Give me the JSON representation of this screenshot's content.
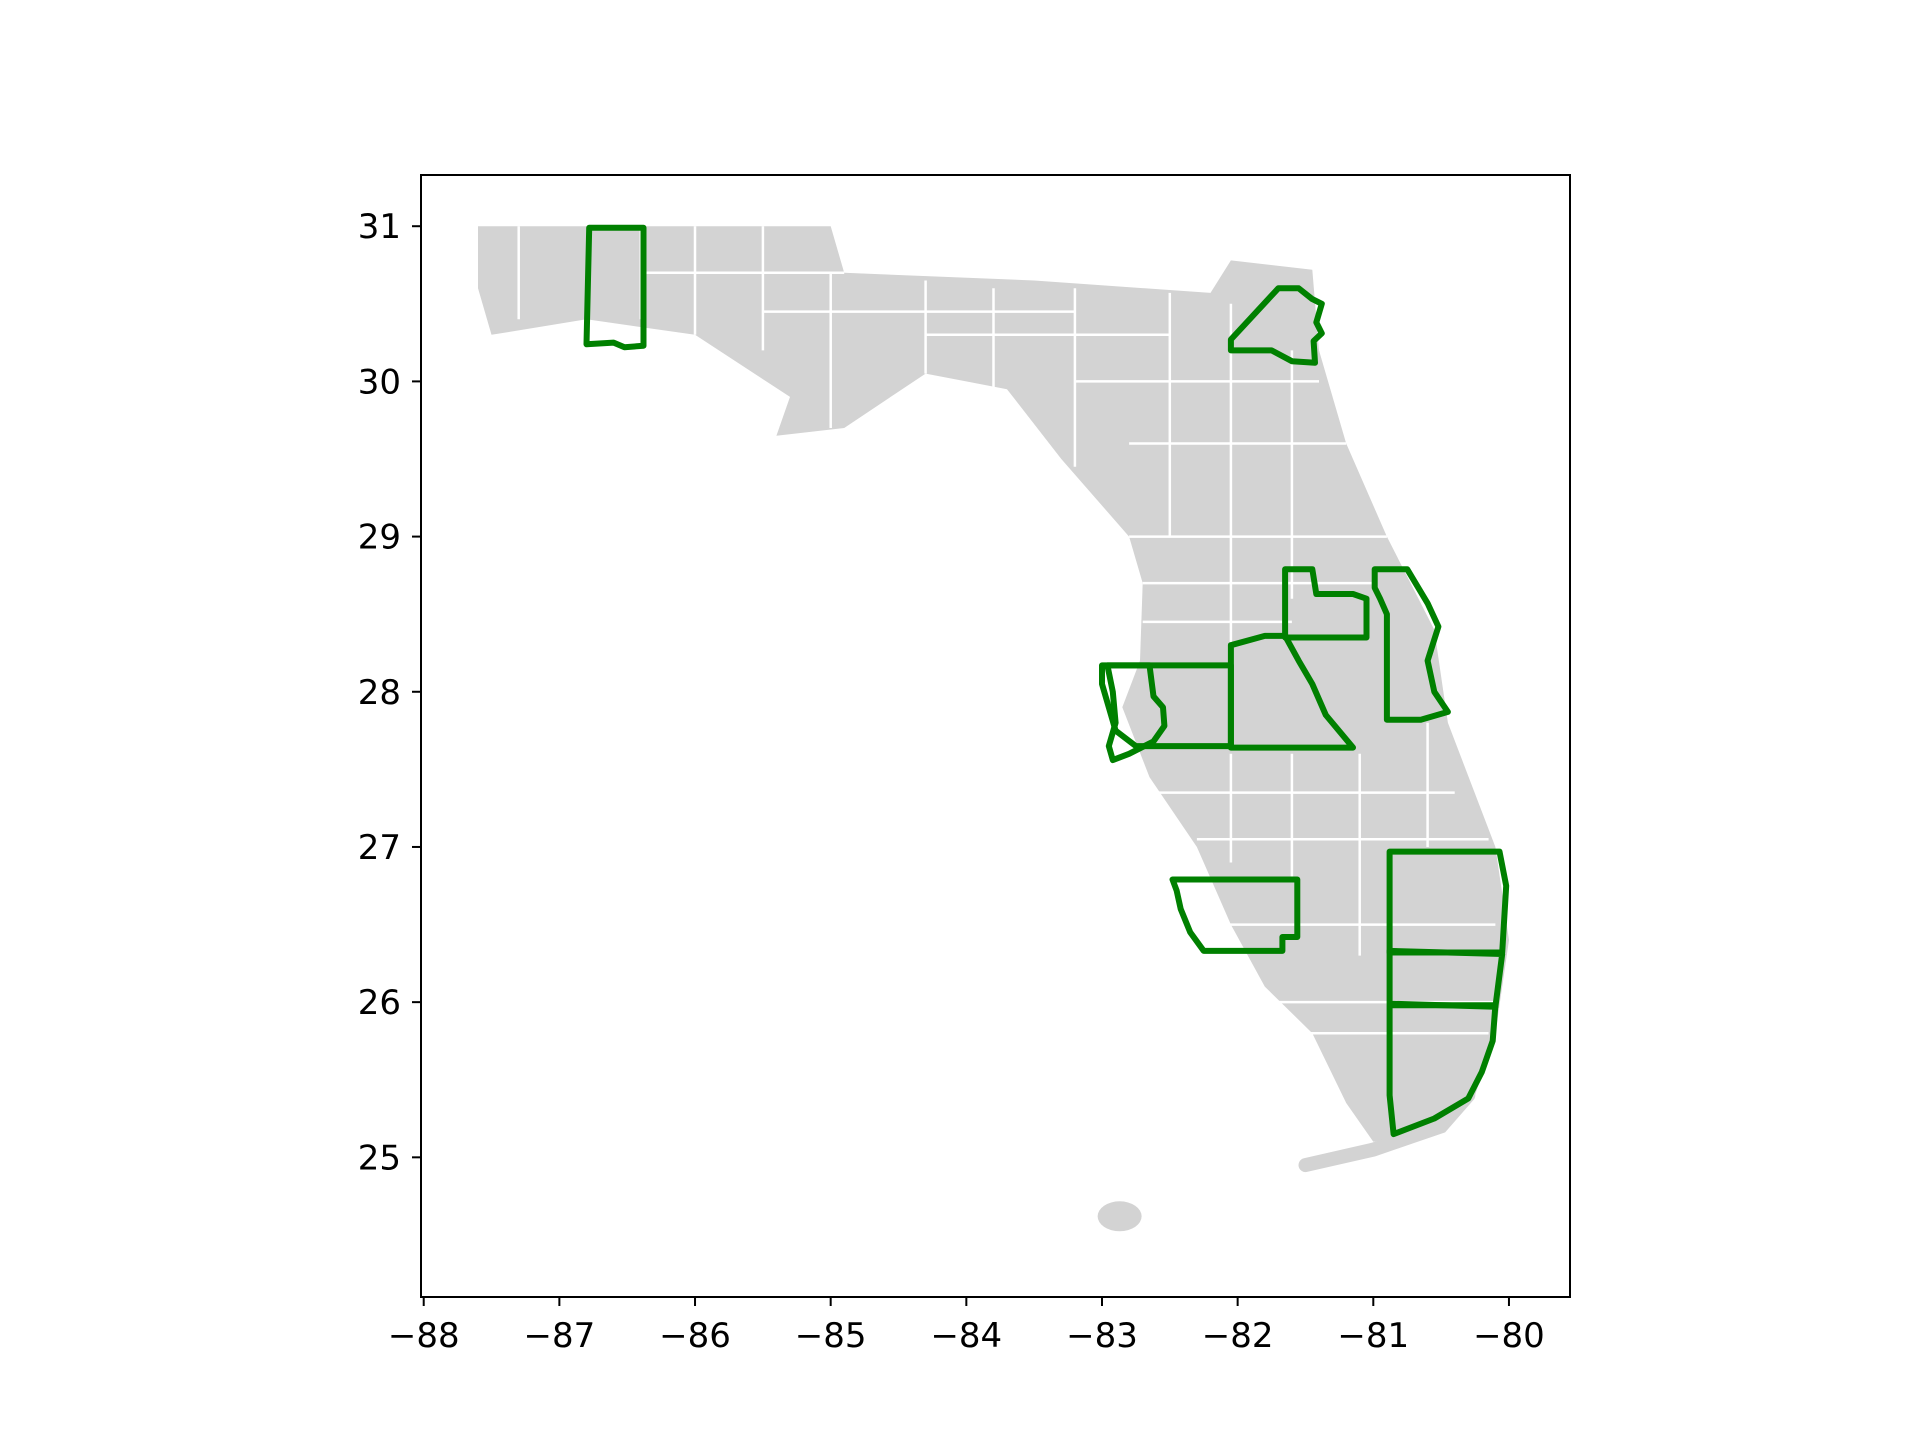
{
  "map": {
    "land_color": "#d3d3d3",
    "county_line_color": "#ffffff",
    "highlight_color": "#008000",
    "frame_color": "#000000",
    "x_range": [
      -88.02,
      -79.55
    ],
    "y_range": [
      24.1,
      31.33
    ],
    "x_ticks": [
      {
        "value": -88,
        "label": "−88"
      },
      {
        "value": -87,
        "label": "−87"
      },
      {
        "value": -86,
        "label": "−86"
      },
      {
        "value": -85,
        "label": "−85"
      },
      {
        "value": -84,
        "label": "−84"
      },
      {
        "value": -83,
        "label": "−83"
      },
      {
        "value": -82,
        "label": "−82"
      },
      {
        "value": -81,
        "label": "−81"
      },
      {
        "value": -80,
        "label": "−80"
      }
    ],
    "y_ticks": [
      {
        "value": 25,
        "label": "25"
      },
      {
        "value": 26,
        "label": "26"
      },
      {
        "value": 27,
        "label": "27"
      },
      {
        "value": 28,
        "label": "28"
      },
      {
        "value": 29,
        "label": "29"
      },
      {
        "value": 30,
        "label": "30"
      },
      {
        "value": 31,
        "label": "31"
      }
    ],
    "state_outline": [
      [
        -87.6,
        31.0
      ],
      [
        -85.0,
        31.0
      ],
      [
        -84.9,
        30.7
      ],
      [
        -83.5,
        30.65
      ],
      [
        -82.2,
        30.57
      ],
      [
        -82.05,
        30.78
      ],
      [
        -81.45,
        30.72
      ],
      [
        -81.4,
        30.2
      ],
      [
        -81.2,
        29.6
      ],
      [
        -80.9,
        29.0
      ],
      [
        -80.55,
        28.4
      ],
      [
        -80.45,
        27.8
      ],
      [
        -80.1,
        27.0
      ],
      [
        -80.0,
        26.4
      ],
      [
        -80.1,
        25.8
      ],
      [
        -80.25,
        25.4
      ],
      [
        -80.6,
        25.15
      ],
      [
        -81.0,
        25.1
      ],
      [
        -81.2,
        25.35
      ],
      [
        -81.45,
        25.8
      ],
      [
        -81.8,
        26.1
      ],
      [
        -82.05,
        26.5
      ],
      [
        -82.3,
        27.0
      ],
      [
        -82.65,
        27.45
      ],
      [
        -82.85,
        27.9
      ],
      [
        -82.72,
        28.2
      ],
      [
        -82.7,
        28.7
      ],
      [
        -82.8,
        29.0
      ],
      [
        -83.3,
        29.5
      ],
      [
        -83.7,
        29.95
      ],
      [
        -84.3,
        30.05
      ],
      [
        -84.9,
        29.7
      ],
      [
        -85.4,
        29.65
      ],
      [
        -85.3,
        29.9
      ],
      [
        -86.0,
        30.3
      ],
      [
        -86.8,
        30.4
      ],
      [
        -87.5,
        30.3
      ],
      [
        -87.6,
        30.6
      ]
    ],
    "keys": [
      [
        -81.5,
        24.95
      ],
      [
        -81.0,
        25.05
      ],
      [
        -80.5,
        25.2
      ],
      [
        -80.3,
        25.4
      ]
    ],
    "county_lines": [
      [
        [
          -87.3,
          31.0
        ],
        [
          -87.3,
          30.4
        ]
      ],
      [
        [
          -86.4,
          31.0
        ],
        [
          -86.4,
          30.4
        ]
      ],
      [
        [
          -86.0,
          31.0
        ],
        [
          -86.0,
          30.3
        ]
      ],
      [
        [
          -85.5,
          31.0
        ],
        [
          -85.5,
          30.2
        ]
      ],
      [
        [
          -85.0,
          30.7
        ],
        [
          -85.0,
          29.7
        ]
      ],
      [
        [
          -84.3,
          30.65
        ],
        [
          -84.3,
          30.05
        ]
      ],
      [
        [
          -83.8,
          30.6
        ],
        [
          -83.8,
          29.95
        ]
      ],
      [
        [
          -83.2,
          30.6
        ],
        [
          -83.2,
          29.45
        ]
      ],
      [
        [
          -82.5,
          30.57
        ],
        [
          -82.5,
          29.0
        ]
      ],
      [
        [
          -82.05,
          30.5
        ],
        [
          -82.05,
          28.2
        ]
      ],
      [
        [
          -81.6,
          30.2
        ],
        [
          -81.6,
          28.6
        ]
      ],
      [
        [
          -86.4,
          30.7
        ],
        [
          -84.9,
          30.7
        ]
      ],
      [
        [
          -85.5,
          30.45
        ],
        [
          -83.2,
          30.45
        ]
      ],
      [
        [
          -84.3,
          30.3
        ],
        [
          -82.5,
          30.3
        ]
      ],
      [
        [
          -83.2,
          30.0
        ],
        [
          -81.4,
          30.0
        ]
      ],
      [
        [
          -82.8,
          29.6
        ],
        [
          -81.2,
          29.6
        ]
      ],
      [
        [
          -82.8,
          29.0
        ],
        [
          -80.9,
          29.0
        ]
      ],
      [
        [
          -82.7,
          28.7
        ],
        [
          -81.0,
          28.7
        ]
      ],
      [
        [
          -82.7,
          28.45
        ],
        [
          -81.6,
          28.45
        ]
      ],
      [
        [
          -82.65,
          27.35
        ],
        [
          -80.4,
          27.35
        ]
      ],
      [
        [
          -82.3,
          27.05
        ],
        [
          -80.15,
          27.05
        ]
      ],
      [
        [
          -82.1,
          26.5
        ],
        [
          -80.1,
          26.5
        ]
      ],
      [
        [
          -81.7,
          26.0
        ],
        [
          -80.1,
          26.0
        ]
      ],
      [
        [
          -81.5,
          25.8
        ],
        [
          -80.15,
          25.8
        ]
      ],
      [
        [
          -81.6,
          27.6
        ],
        [
          -81.6,
          26.8
        ]
      ],
      [
        [
          -81.1,
          27.6
        ],
        [
          -81.1,
          26.3
        ]
      ],
      [
        [
          -82.05,
          27.6
        ],
        [
          -82.05,
          26.9
        ]
      ],
      [
        [
          -80.6,
          27.8
        ],
        [
          -80.6,
          27.0
        ]
      ]
    ],
    "highlighted_counties": [
      {
        "name": "",
        "points": [
          [
            -86.78,
            30.99
          ],
          [
            -86.38,
            30.99
          ],
          [
            -86.38,
            30.23
          ],
          [
            -86.52,
            30.22
          ],
          [
            -86.6,
            30.25
          ],
          [
            -86.8,
            30.24
          ]
        ]
      },
      {
        "name": "",
        "points": [
          [
            -82.05,
            30.27
          ],
          [
            -81.7,
            30.6
          ],
          [
            -81.55,
            30.6
          ],
          [
            -81.45,
            30.53
          ],
          [
            -81.38,
            30.5
          ],
          [
            -81.42,
            30.38
          ],
          [
            -81.38,
            30.31
          ],
          [
            -81.44,
            30.26
          ],
          [
            -81.43,
            30.12
          ],
          [
            -81.6,
            30.13
          ],
          [
            -81.75,
            30.2
          ],
          [
            -82.05,
            30.2
          ]
        ]
      },
      {
        "name": "",
        "points": [
          [
            -81.65,
            28.79
          ],
          [
            -81.45,
            28.79
          ],
          [
            -81.42,
            28.63
          ],
          [
            -81.15,
            28.63
          ],
          [
            -81.05,
            28.6
          ],
          [
            -81.05,
            28.35
          ],
          [
            -81.65,
            28.35
          ]
        ]
      },
      {
        "name": "",
        "points": [
          [
            -80.99,
            28.79
          ],
          [
            -80.75,
            28.79
          ],
          [
            -80.6,
            28.57
          ],
          [
            -80.52,
            28.42
          ],
          [
            -80.6,
            28.2
          ],
          [
            -80.55,
            28.0
          ],
          [
            -80.45,
            27.87
          ],
          [
            -80.65,
            27.82
          ],
          [
            -80.9,
            27.82
          ],
          [
            -80.9,
            28.5
          ],
          [
            -80.95,
            28.6
          ],
          [
            -80.99,
            28.67
          ]
        ]
      },
      {
        "name": "",
        "points": [
          [
            -83.0,
            28.17
          ],
          [
            -82.05,
            28.17
          ],
          [
            -82.05,
            27.65
          ],
          [
            -82.75,
            27.65
          ],
          [
            -82.9,
            27.75
          ],
          [
            -82.95,
            27.9
          ],
          [
            -83.0,
            28.05
          ]
        ]
      },
      {
        "name": "",
        "points": [
          [
            -82.65,
            28.17
          ],
          [
            -82.62,
            27.97
          ],
          [
            -82.55,
            27.9
          ],
          [
            -82.54,
            27.78
          ],
          [
            -82.62,
            27.68
          ],
          [
            -82.8,
            27.6
          ],
          [
            -82.92,
            27.56
          ],
          [
            -82.95,
            27.65
          ],
          [
            -82.9,
            27.8
          ],
          [
            -82.92,
            28.0
          ],
          [
            -82.96,
            28.17
          ]
        ]
      },
      {
        "name": "",
        "points": [
          [
            -82.05,
            28.3
          ],
          [
            -81.8,
            28.36
          ],
          [
            -81.65,
            28.36
          ],
          [
            -81.55,
            28.2
          ],
          [
            -81.45,
            28.05
          ],
          [
            -81.35,
            27.85
          ],
          [
            -81.15,
            27.64
          ],
          [
            -82.05,
            27.64
          ]
        ]
      },
      {
        "name": "",
        "points": [
          [
            -82.48,
            26.79
          ],
          [
            -81.56,
            26.79
          ],
          [
            -81.56,
            26.42
          ],
          [
            -81.67,
            26.42
          ],
          [
            -81.67,
            26.33
          ],
          [
            -82.25,
            26.33
          ],
          [
            -82.35,
            26.45
          ],
          [
            -82.42,
            26.6
          ],
          [
            -82.45,
            26.72
          ]
        ]
      },
      {
        "name": "",
        "points": [
          [
            -80.88,
            26.97
          ],
          [
            -80.07,
            26.97
          ],
          [
            -80.02,
            26.75
          ],
          [
            -80.05,
            26.32
          ],
          [
            -80.88,
            26.32
          ]
        ]
      },
      {
        "name": "",
        "points": [
          [
            -80.88,
            26.33
          ],
          [
            -80.05,
            26.31
          ],
          [
            -80.1,
            25.97
          ],
          [
            -80.88,
            25.99
          ]
        ]
      },
      {
        "name": "",
        "points": [
          [
            -80.88,
            25.98
          ],
          [
            -80.1,
            25.98
          ],
          [
            -80.12,
            25.75
          ],
          [
            -80.2,
            25.55
          ],
          [
            -80.3,
            25.38
          ],
          [
            -80.55,
            25.25
          ],
          [
            -80.85,
            25.15
          ],
          [
            -80.88,
            25.4
          ]
        ]
      }
    ]
  }
}
